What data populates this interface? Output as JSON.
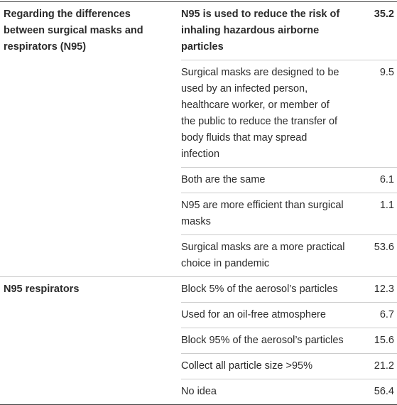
{
  "table": {
    "groups": [
      {
        "label": "Regarding the differences between surgical masks and respirators (N95)",
        "items": [
          {
            "text": "N95 is used to reduce the risk of inhaling hazardous airborne particles",
            "value": 35.2
          },
          {
            "text": "Surgical masks are designed to be used by an infected person, healthcare worker, or member of the public to reduce the transfer of body fluids that may spread infection",
            "value": 9.5
          },
          {
            "text": "Both are the same",
            "value": 6.1
          },
          {
            "text": "N95 are more efficient than surgical masks",
            "value": 1.1
          },
          {
            "text": "Surgical masks are a more practical choice in pandemic",
            "value": 53.6
          }
        ]
      },
      {
        "label": "N95 respirators",
        "items": [
          {
            "text": "Block 5% of the aerosol’s particles",
            "value": 12.3
          },
          {
            "text": "Used for an oil-free atmosphere",
            "value": 6.7
          },
          {
            "text": "Block 95% of the aerosol’s particles",
            "value": 15.6
          },
          {
            "text": "Collect all particle size >95%",
            "value": 21.2
          },
          {
            "text": "No idea",
            "value": 56.4
          }
        ]
      }
    ]
  }
}
